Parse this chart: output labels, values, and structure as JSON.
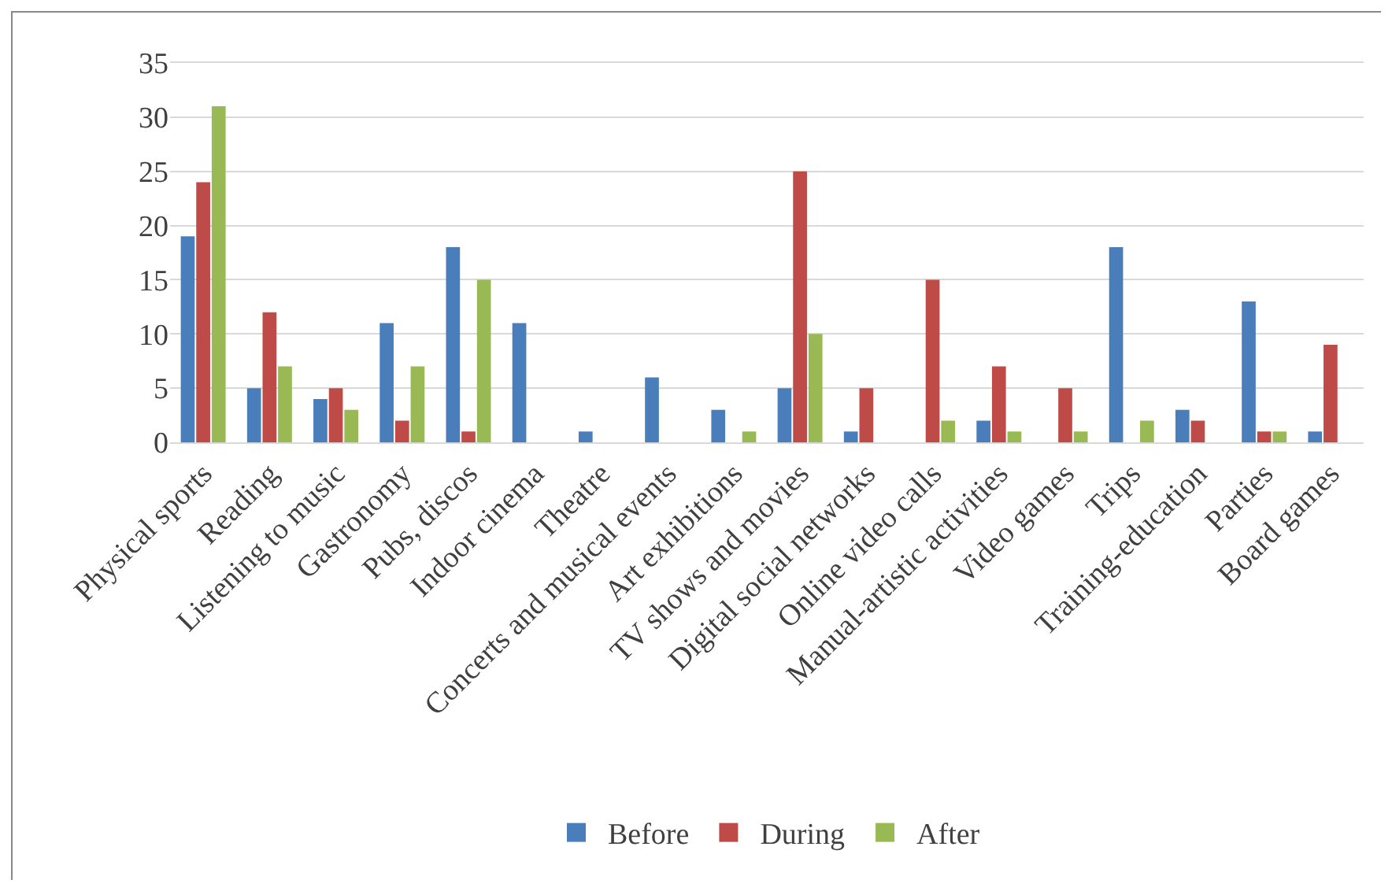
{
  "chart_data": {
    "type": "bar",
    "categories": [
      "Physical sports",
      "Reading",
      "Listening to music",
      "Gastronomy",
      "Pubs, discos",
      "Indoor cinema",
      "Theatre",
      "Concerts and musical events",
      "Art exhibitions",
      "TV shows and movies",
      "Digital social networks",
      "Online video calls",
      "Manual-artistic activities",
      "Video games",
      "Trips",
      "Training-education",
      "Parties",
      "Board games"
    ],
    "series": [
      {
        "name": "Before",
        "color": "#4a7ebb",
        "values": [
          19,
          5,
          4,
          11,
          18,
          11,
          1,
          6,
          3,
          5,
          1,
          0,
          2,
          0,
          18,
          3,
          13,
          1
        ]
      },
      {
        "name": "During",
        "color": "#be4b48",
        "values": [
          24,
          12,
          5,
          2,
          1,
          0,
          0,
          0,
          0,
          25,
          5,
          15,
          7,
          5,
          0,
          2,
          1,
          9
        ]
      },
      {
        "name": "After",
        "color": "#98b954",
        "values": [
          31,
          7,
          3,
          7,
          15,
          0,
          0,
          0,
          1,
          10,
          0,
          2,
          1,
          1,
          2,
          0,
          1,
          0
        ]
      }
    ],
    "ylim": [
      0,
      35
    ],
    "yticks": [
      0,
      5,
      10,
      15,
      20,
      25,
      30,
      35
    ],
    "grid": "y",
    "legend": "bottom"
  }
}
